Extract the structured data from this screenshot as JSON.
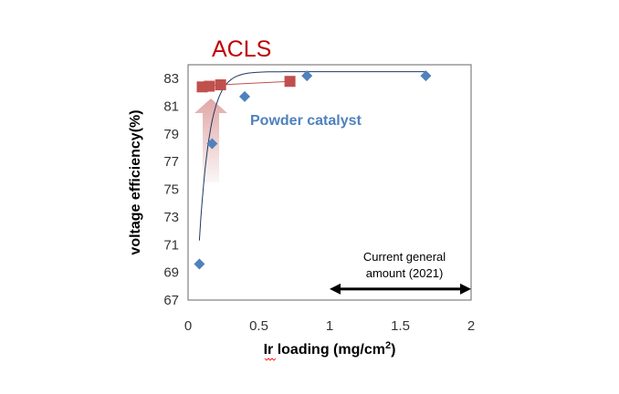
{
  "chart_data": {
    "type": "scatter",
    "xlabel_main": "Ir  loading (mg/cm",
    "xlabel_sup": "2",
    "xlabel_end": ")",
    "ylabel": "voltage efficiency(%)",
    "xlim": [
      0,
      2
    ],
    "ylim": [
      67,
      84
    ],
    "xticks": [
      {
        "v": 0,
        "label": "0"
      },
      {
        "v": 0.5,
        "label": "0.5"
      },
      {
        "v": 1,
        "label": "1"
      },
      {
        "v": 1.5,
        "label": "1.5"
      },
      {
        "v": 2,
        "label": "2"
      }
    ],
    "yticks": [
      {
        "v": 67,
        "label": "67"
      },
      {
        "v": 69,
        "label": "69"
      },
      {
        "v": 71,
        "label": "71"
      },
      {
        "v": 73,
        "label": "73"
      },
      {
        "v": 75,
        "label": "75"
      },
      {
        "v": 77,
        "label": "77"
      },
      {
        "v": 79,
        "label": "79"
      },
      {
        "v": 81,
        "label": "81"
      },
      {
        "v": 83,
        "label": "83"
      }
    ],
    "series": [
      {
        "name": "ACLS",
        "color": "#c0504d",
        "marker": "square",
        "points": [
          [
            0.1,
            82.4
          ],
          [
            0.15,
            82.45
          ],
          [
            0.23,
            82.55
          ],
          [
            0.72,
            82.8
          ]
        ]
      },
      {
        "name": "Powder catalyst",
        "color": "#4f81bd",
        "marker": "diamond",
        "points": [
          [
            0.08,
            69.6
          ],
          [
            0.17,
            78.3
          ],
          [
            0.4,
            81.7
          ],
          [
            0.84,
            83.2
          ],
          [
            1.68,
            83.2
          ]
        ]
      }
    ],
    "annotation": {
      "line1": "Current general",
      "line2": "amount (2021)",
      "arrow_from_x": 1,
      "arrow_to_x": 2,
      "arrow_y": 67.8
    }
  }
}
